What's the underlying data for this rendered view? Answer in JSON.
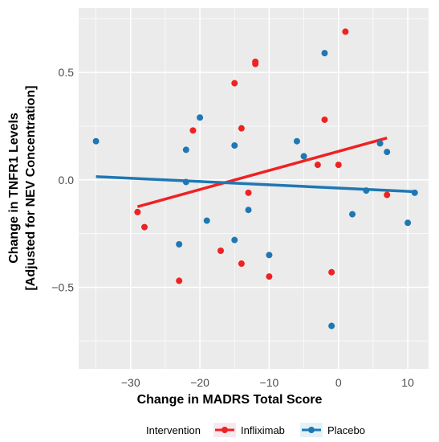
{
  "chart_data": {
    "type": "scatter",
    "title": "",
    "xlabel": "Change in MADRS Total Score",
    "ylabel_lines": [
      "Change in TNFR1 Levels",
      "[Adjusted for NEV Concentration]"
    ],
    "xlim": [
      -37.5,
      13
    ],
    "ylim": [
      -0.88,
      0.8
    ],
    "x_ticks": [
      -30,
      -20,
      -10,
      0,
      10
    ],
    "x_tick_labels": [
      "−30",
      "−20",
      "−10",
      "0",
      "10"
    ],
    "y_ticks": [
      -0.5,
      0.0,
      0.5
    ],
    "y_tick_labels": [
      "−0.5",
      "0.0",
      "0.5"
    ],
    "grid": true,
    "legend": {
      "title": "Intervention",
      "position": "bottom",
      "entries": [
        "Infliximab",
        "Placebo"
      ]
    },
    "colors": {
      "Infliximab": "#ee2222",
      "Placebo": "#1f77b4",
      "panel_bg": "#ebebeb",
      "grid": "#ffffff"
    },
    "series": [
      {
        "name": "Infliximab",
        "points": [
          [
            -29,
            -0.15
          ],
          [
            -28,
            -0.22
          ],
          [
            -23,
            -0.47
          ],
          [
            -21,
            0.23
          ],
          [
            -17,
            -0.33
          ],
          [
            -15,
            0.45
          ],
          [
            -14,
            0.24
          ],
          [
            -14,
            -0.39
          ],
          [
            -13,
            -0.06
          ],
          [
            -12,
            0.55
          ],
          [
            -12,
            0.54
          ],
          [
            -10,
            -0.45
          ],
          [
            -3,
            0.07
          ],
          [
            -2,
            0.28
          ],
          [
            -1,
            -0.43
          ],
          [
            0,
            0.07
          ],
          [
            1,
            0.69
          ],
          [
            7,
            -0.07
          ]
        ],
        "trend": [
          [
            -29,
            -0.125
          ],
          [
            7,
            0.195
          ]
        ]
      },
      {
        "name": "Placebo",
        "points": [
          [
            -35,
            0.18
          ],
          [
            -23,
            -0.3
          ],
          [
            -22,
            0.14
          ],
          [
            -22,
            -0.01
          ],
          [
            -20,
            0.29
          ],
          [
            -19,
            -0.19
          ],
          [
            -15,
            0.16
          ],
          [
            -15,
            -0.28
          ],
          [
            -13,
            -0.14
          ],
          [
            -10,
            -0.35
          ],
          [
            -6,
            0.18
          ],
          [
            -5,
            0.11
          ],
          [
            -2,
            0.59
          ],
          [
            -1,
            -0.68
          ],
          [
            2,
            -0.16
          ],
          [
            4,
            -0.05
          ],
          [
            6,
            0.17
          ],
          [
            7,
            0.13
          ],
          [
            10,
            -0.2
          ],
          [
            11,
            -0.06
          ]
        ],
        "trend": [
          [
            -35,
            0.015
          ],
          [
            11,
            -0.055
          ]
        ]
      }
    ]
  }
}
